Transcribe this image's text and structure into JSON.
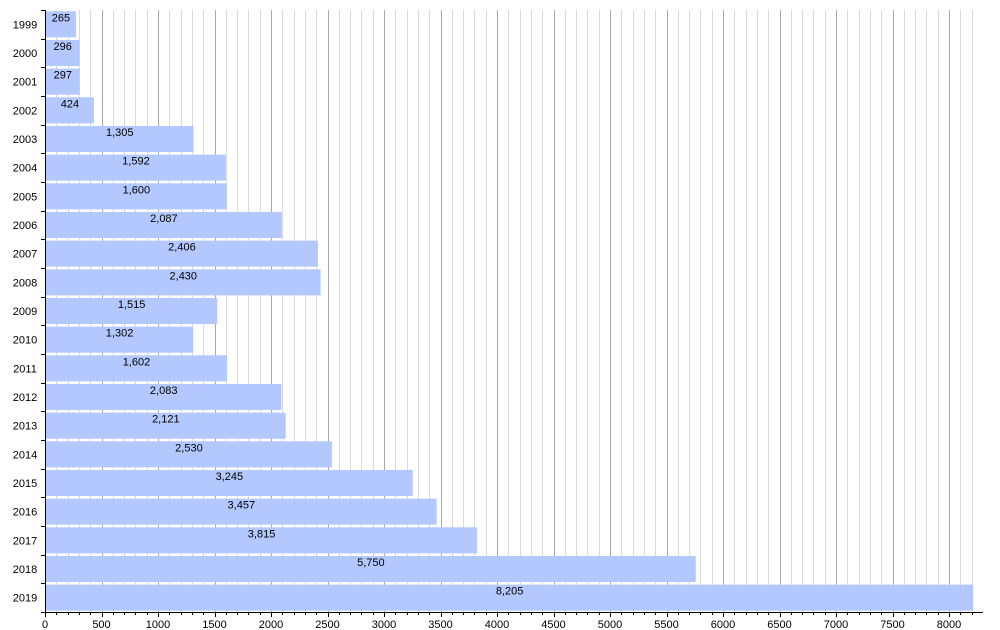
{
  "chart_data": {
    "type": "bar",
    "orientation": "horizontal",
    "categories": [
      "1999",
      "2000",
      "2001",
      "2002",
      "2003",
      "2004",
      "2005",
      "2006",
      "2007",
      "2008",
      "2009",
      "2010",
      "2011",
      "2012",
      "2013",
      "2014",
      "2015",
      "2016",
      "2017",
      "2018",
      "2019"
    ],
    "values": [
      265,
      296,
      297,
      424,
      1305,
      1592,
      1600,
      2087,
      2406,
      2430,
      1515,
      1302,
      1602,
      2083,
      2121,
      2530,
      3245,
      3457,
      3815,
      5750,
      8205
    ],
    "value_labels": [
      "265",
      "296",
      "297",
      "424",
      "1,305",
      "1,592",
      "1,600",
      "2,087",
      "2,406",
      "2,430",
      "1,515",
      "1,302",
      "1,602",
      "2,083",
      "2,121",
      "2,530",
      "3,245",
      "3,457",
      "3,815",
      "5,750",
      "8,205"
    ],
    "x_ticks": [
      "0",
      "500",
      "1000",
      "1500",
      "2000",
      "2500",
      "3000",
      "3500",
      "4000",
      "4500",
      "5000",
      "5500",
      "6000",
      "6500",
      "7000",
      "7500",
      "8000"
    ],
    "xlim": [
      0,
      8250
    ],
    "major_tick_step": 500,
    "minor_gridline_step": 100,
    "grid": true,
    "legend": false,
    "title": "",
    "xlabel": "",
    "ylabel": "",
    "colors": {
      "bar": "#b3c8ff",
      "minor_grid": "#d9d9d9",
      "major_grid": "#a8a8a8",
      "axis": "#000000",
      "text": "#000000"
    }
  }
}
